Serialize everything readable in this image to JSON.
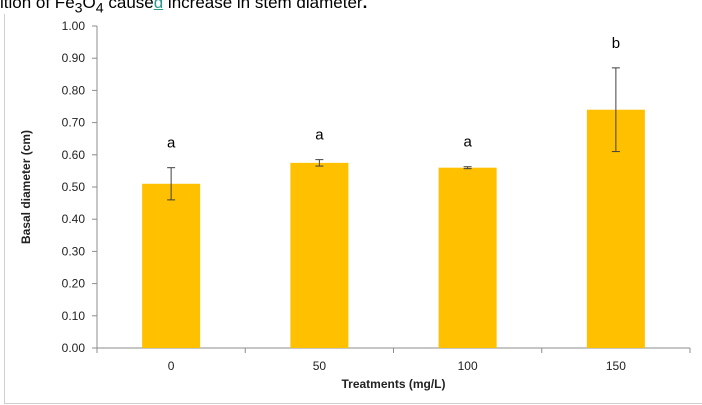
{
  "caption": {
    "prefix": "ition of Fe",
    "sub3": "3",
    "mid": "O",
    "sub4": "4",
    "cause_pre": " cause",
    "cause_d": "d",
    "rest": " increase in stem diameter",
    "period": "."
  },
  "chart_data": {
    "type": "bar",
    "categories": [
      "0",
      "50",
      "100",
      "150"
    ],
    "values": [
      0.51,
      0.575,
      0.56,
      0.74
    ],
    "errors": [
      0.05,
      0.01,
      0.003,
      0.13
    ],
    "significance_labels": [
      "a",
      "a",
      "a",
      "b"
    ],
    "xlabel": "Treatments (mg/L)",
    "ylabel": "Basal diameter (cm)",
    "ylim": [
      0,
      1.0
    ],
    "yticks": [
      "0.00",
      "0.10",
      "0.20",
      "0.30",
      "0.40",
      "0.50",
      "0.60",
      "0.70",
      "0.80",
      "0.90",
      "1.00"
    ],
    "grid": false,
    "bar_color": "#FFC000",
    "error_color": "#404040"
  }
}
